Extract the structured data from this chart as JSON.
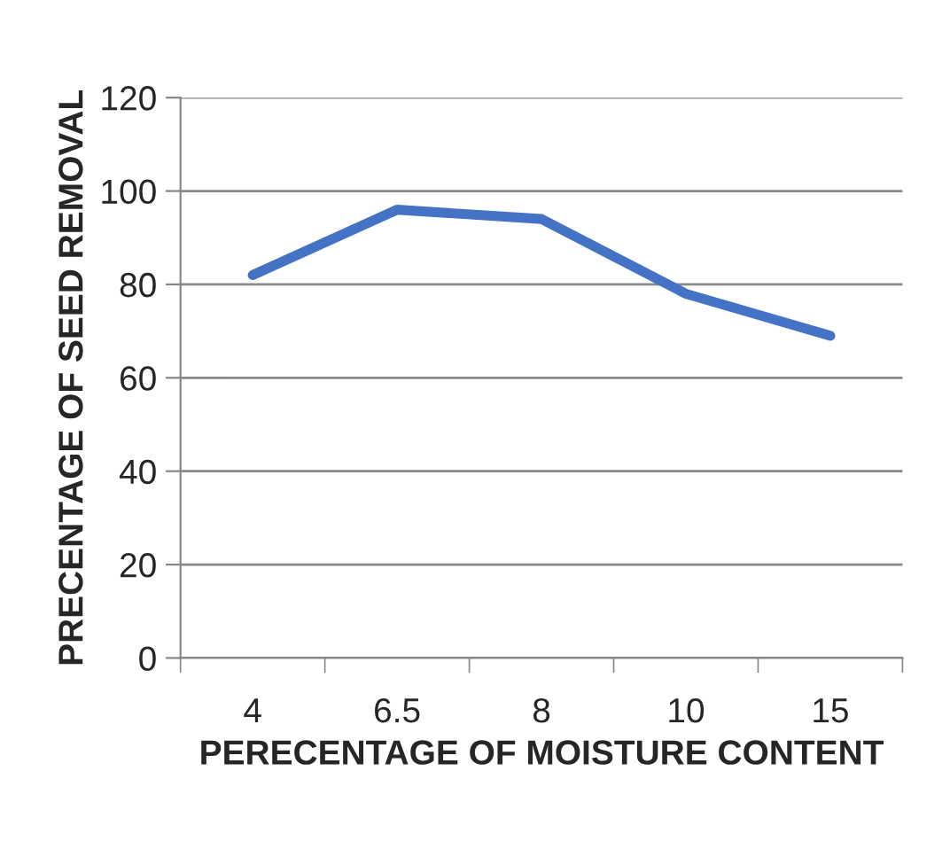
{
  "chart_data": {
    "type": "line",
    "xlabel": "PERECENTAGE OF MOISTURE CONTENT",
    "ylabel": "PRECENTAGE OF SEED REMOVAL",
    "categories": [
      "4",
      "6.5",
      "8",
      "10",
      "15"
    ],
    "series": [
      {
        "color": "#4472c4",
        "values": [
          82,
          96,
          94,
          78,
          69
        ]
      }
    ],
    "ylim": [
      0,
      120
    ],
    "yticks": [
      0,
      20,
      40,
      60,
      80,
      100,
      120
    ],
    "grid": "y",
    "marker": "none",
    "line_style": "solid"
  }
}
